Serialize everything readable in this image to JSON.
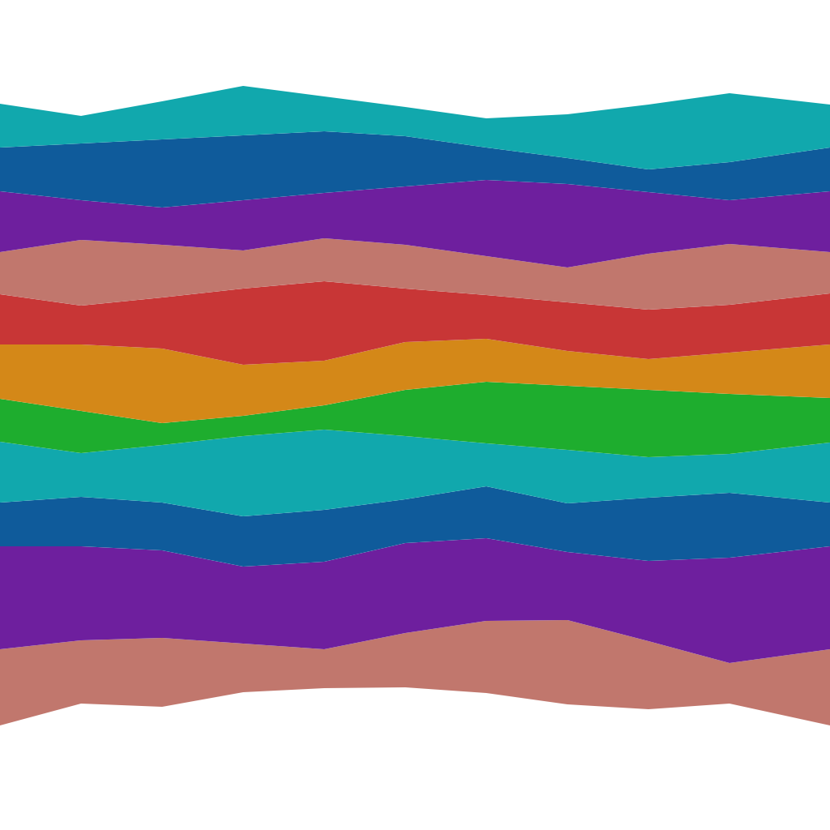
{
  "chart_data": {
    "type": "area",
    "stacked": true,
    "tick_labels": false,
    "grid": false,
    "x": [
      0,
      100,
      200,
      300,
      400,
      500,
      600,
      700,
      800,
      900,
      1024
    ],
    "xlim": [
      0,
      1024
    ],
    "ylim": [
      0,
      1024
    ],
    "series": [
      {
        "color": "#ffffff",
        "values": [
          129,
          156,
          152,
          170,
          175,
          176,
          169,
          155,
          149,
          156,
          129
        ]
      },
      {
        "color": "#c1776d",
        "values": [
          94,
          78,
          85,
          60,
          48,
          67,
          89,
          104,
          84,
          50,
          94
        ]
      },
      {
        "color": "#6e1f9e",
        "values": [
          127,
          116,
          108,
          95,
          108,
          111,
          102,
          84,
          99,
          130,
          127
        ]
      },
      {
        "color": "#0f5b9b",
        "values": [
          54,
          61,
          59,
          62,
          64,
          54,
          64,
          60,
          78,
          80,
          54
        ]
      },
      {
        "color": "#11a8ad",
        "values": [
          75,
          54,
          71,
          99,
          99,
          78,
          53,
          66,
          50,
          48,
          74
        ]
      },
      {
        "color": "#1ead2e",
        "values": [
          53,
          52,
          27,
          25,
          30,
          57,
          76,
          79,
          83,
          74,
          55
        ]
      },
      {
        "color": "#d48818",
        "values": [
          67,
          82,
          92,
          63,
          55,
          59,
          53,
          43,
          38,
          51,
          66
        ]
      },
      {
        "color": "#c83636",
        "values": [
          62,
          48,
          63,
          94,
          98,
          66,
          54,
          60,
          61,
          59,
          63
        ]
      },
      {
        "color": "#c1776d",
        "values": [
          52,
          81,
          65,
          47,
          53,
          54,
          48,
          43,
          69,
          75,
          51
        ]
      },
      {
        "color": "#6e1f9e",
        "values": [
          75,
          49,
          46,
          62,
          56,
          72,
          94,
          103,
          76,
          54,
          75
        ]
      },
      {
        "color": "#0f5b9b",
        "values": [
          54,
          70,
          84,
          80,
          76,
          62,
          40,
          32,
          28,
          47,
          54
        ]
      },
      {
        "color": "#11a8ad",
        "values": [
          54,
          34,
          47,
          61,
          43,
          36,
          36,
          54,
          80,
          85,
          53
        ]
      }
    ]
  }
}
